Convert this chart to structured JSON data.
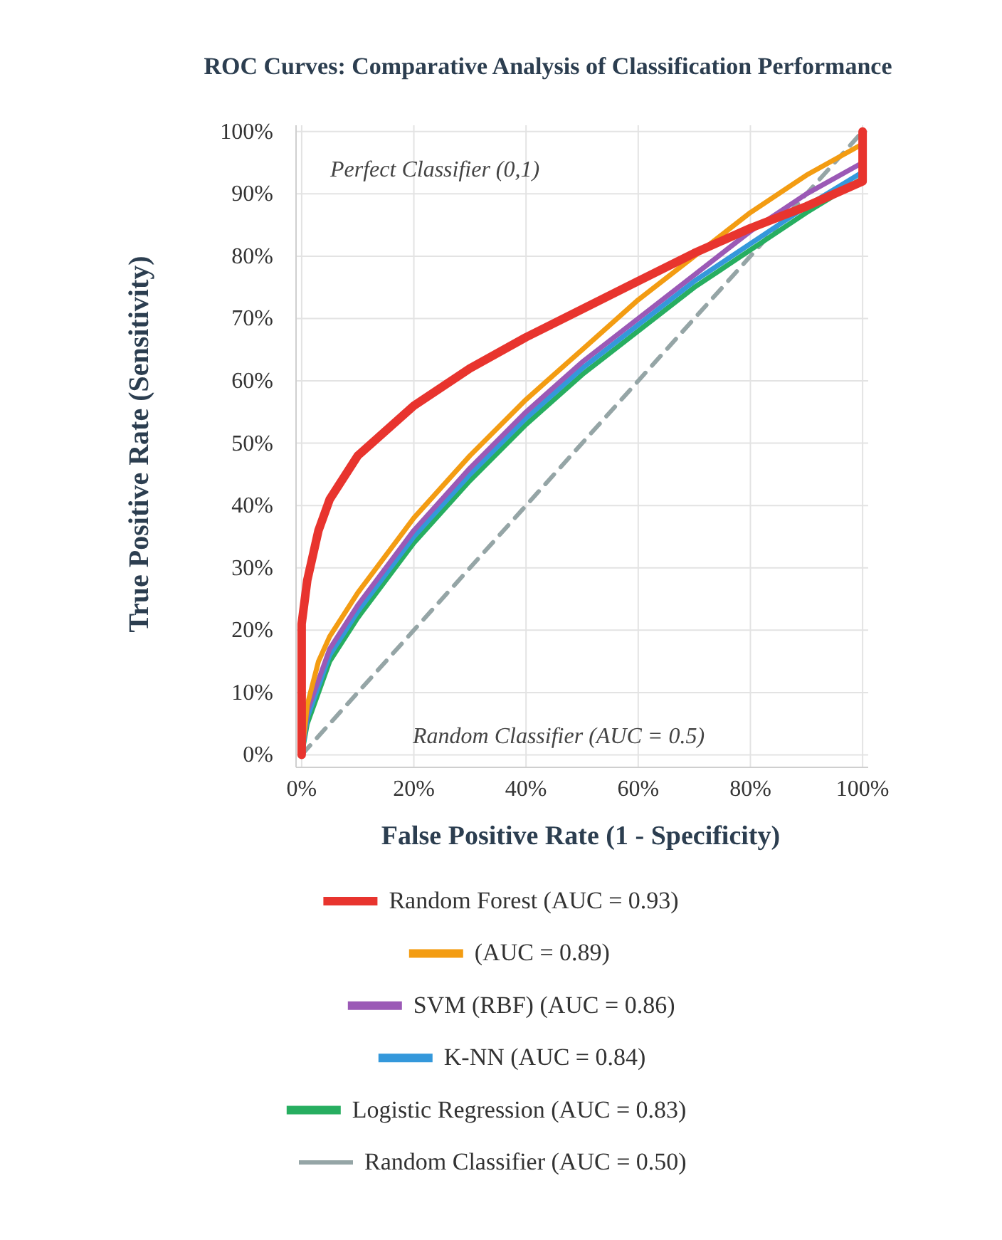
{
  "chart_data": {
    "type": "line",
    "title": "ROC Curves: Comparative Analysis of Classification Performance",
    "xlabel": "False Positive Rate (1 - Specificity)",
    "ylabel": "True Positive Rate (Sensitivity)",
    "annotations": [
      "Perfect Classifier (0,1)",
      "Random Classifier (AUC = 0.5)"
    ],
    "xlim": [
      -1,
      101
    ],
    "ylim": [
      -2,
      101
    ],
    "xticks": [
      {
        "value": 0,
        "label": "0%"
      },
      {
        "value": 20,
        "label": "20%"
      },
      {
        "value": 40,
        "label": "40%"
      },
      {
        "value": 60,
        "label": "60%"
      },
      {
        "value": 80,
        "label": "80%"
      },
      {
        "value": 100,
        "label": "100%"
      }
    ],
    "yticks": [
      {
        "value": 0,
        "label": "0%"
      },
      {
        "value": 10,
        "label": "10%"
      },
      {
        "value": 20,
        "label": "20%"
      },
      {
        "value": 30,
        "label": "30%"
      },
      {
        "value": 40,
        "label": "40%"
      },
      {
        "value": 50,
        "label": "50%"
      },
      {
        "value": 60,
        "label": "60%"
      },
      {
        "value": 70,
        "label": "70%"
      },
      {
        "value": 80,
        "label": "80%"
      },
      {
        "value": 90,
        "label": "90%"
      },
      {
        "value": 100,
        "label": "100%"
      }
    ],
    "grid": true,
    "legend": "bottom",
    "marker": "none",
    "series": [
      {
        "name": "Random Forest (AUC = 0.93)",
        "color": "#e8342e",
        "x": [
          0,
          0,
          1,
          3,
          5,
          10,
          20,
          30,
          40,
          50,
          60,
          70,
          80,
          90,
          100,
          100
        ],
        "values": [
          0,
          21,
          28,
          36,
          41,
          48,
          56,
          62,
          67,
          71.5,
          76,
          80.5,
          84.5,
          88,
          92,
          100
        ]
      },
      {
        "name": "(AUC = 0.89)",
        "color": "#f39c12",
        "x": [
          0,
          1,
          3,
          5,
          10,
          20,
          30,
          40,
          50,
          60,
          70,
          80,
          90,
          100
        ],
        "values": [
          0,
          8,
          15,
          19,
          26,
          38,
          48,
          57,
          65,
          73,
          80,
          87,
          93,
          98
        ]
      },
      {
        "name": "SVM (RBF) (AUC = 0.86)",
        "color": "#9b59b6",
        "x": [
          0,
          1,
          5,
          10,
          20,
          30,
          40,
          50,
          60,
          70,
          80,
          90,
          100
        ],
        "values": [
          0,
          7,
          17,
          24,
          36,
          46,
          55,
          63,
          70,
          77,
          84,
          90,
          95
        ]
      },
      {
        "name": "K-NN (AUC = 0.84)",
        "color": "#3498db",
        "x": [
          0,
          1,
          5,
          10,
          20,
          30,
          40,
          50,
          60,
          70,
          80,
          90,
          100
        ],
        "values": [
          0,
          6,
          16,
          23,
          35,
          45,
          54,
          62,
          69,
          76,
          82,
          88,
          93.5
        ]
      },
      {
        "name": "Logistic Regression (AUC = 0.83)",
        "color": "#27ae60",
        "x": [
          0,
          1,
          5,
          10,
          20,
          30,
          40,
          50,
          60,
          70,
          80,
          90,
          100
        ],
        "values": [
          0,
          5,
          15,
          22,
          34,
          44,
          53,
          61,
          68,
          75,
          81,
          87,
          92.5
        ]
      },
      {
        "name": "Random Classifier (AUC = 0.50)",
        "color": "#95a5a6",
        "line_style": "dashed",
        "x": [
          0,
          100
        ],
        "values": [
          0,
          100
        ]
      }
    ]
  }
}
